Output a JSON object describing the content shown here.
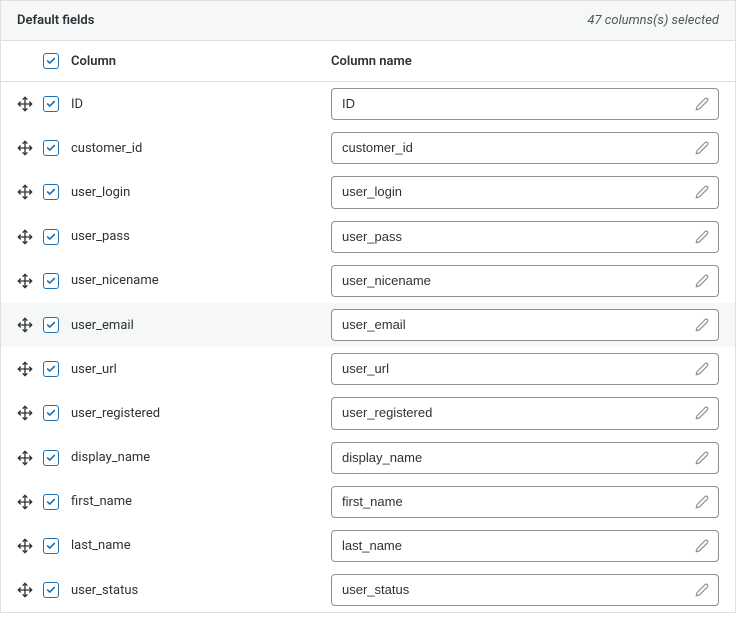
{
  "panel": {
    "title": "Default fields",
    "status": "47 columns(s) selected"
  },
  "headers": {
    "column": "Column",
    "column_name": "Column name"
  },
  "select_all_checked": true,
  "colors": {
    "checkbox_border": "#2271b1",
    "check_mark": "#2271b1",
    "input_border": "#8c8f94",
    "header_bg": "#f6f7f7",
    "row_hover_bg": "#f6f7f7",
    "text": "#2c3338",
    "muted": "#50575e"
  },
  "fields": [
    {
      "checked": true,
      "label": "ID",
      "value": "ID",
      "hover": false
    },
    {
      "checked": true,
      "label": "customer_id",
      "value": "customer_id",
      "hover": false
    },
    {
      "checked": true,
      "label": "user_login",
      "value": "user_login",
      "hover": false
    },
    {
      "checked": true,
      "label": "user_pass",
      "value": "user_pass",
      "hover": false
    },
    {
      "checked": true,
      "label": "user_nicename",
      "value": "user_nicename",
      "hover": false
    },
    {
      "checked": true,
      "label": "user_email",
      "value": "user_email",
      "hover": true
    },
    {
      "checked": true,
      "label": "user_url",
      "value": "user_url",
      "hover": false
    },
    {
      "checked": true,
      "label": "user_registered",
      "value": "user_registered",
      "hover": false
    },
    {
      "checked": true,
      "label": "display_name",
      "value": "display_name",
      "hover": false
    },
    {
      "checked": true,
      "label": "first_name",
      "value": "first_name",
      "hover": false
    },
    {
      "checked": true,
      "label": "last_name",
      "value": "last_name",
      "hover": false
    },
    {
      "checked": true,
      "label": "user_status",
      "value": "user_status",
      "hover": false
    }
  ]
}
